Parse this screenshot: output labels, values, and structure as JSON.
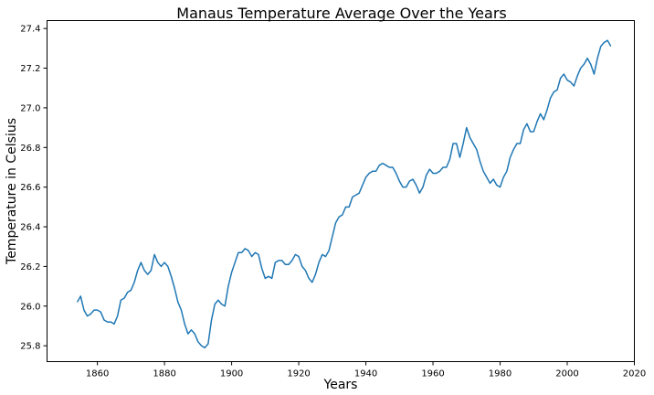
{
  "chart_data": {
    "type": "line",
    "title": "Manaus Temperature Average Over the Years",
    "xlabel": "Years",
    "ylabel": "Temperature in Celsius",
    "xlim": [
      1845,
      2020
    ],
    "ylim": [
      25.72,
      27.44
    ],
    "xticks": [
      1860,
      1880,
      1900,
      1920,
      1940,
      1960,
      1980,
      2000,
      2020
    ],
    "yticks": [
      25.8,
      26.0,
      26.2,
      26.4,
      26.6,
      26.8,
      27.0,
      27.2,
      27.4
    ],
    "xtick_labels": [
      "1860",
      "1880",
      "1900",
      "1920",
      "1940",
      "1960",
      "1980",
      "2000",
      "2020"
    ],
    "ytick_labels": [
      "25.8",
      "26.0",
      "26.2",
      "26.4",
      "26.6",
      "26.8",
      "27.0",
      "27.2",
      "27.4"
    ],
    "grid": false,
    "line_color": "#1f77b4",
    "series": [
      {
        "x": [
          1854,
          1855,
          1856,
          1857,
          1858,
          1859,
          1860,
          1861,
          1862,
          1863,
          1864,
          1865,
          1866,
          1867,
          1868,
          1869,
          1870,
          1871,
          1872,
          1873,
          1874,
          1875,
          1876,
          1877,
          1878,
          1879,
          1880,
          1881,
          1882,
          1883,
          1884,
          1885,
          1886,
          1887,
          1888,
          1889,
          1890,
          1891,
          1892,
          1893,
          1894,
          1895,
          1896,
          1897,
          1898,
          1899,
          1900,
          1901,
          1902,
          1903,
          1904,
          1905,
          1906,
          1907,
          1908,
          1909,
          1910,
          1911,
          1912,
          1913,
          1914,
          1915,
          1916,
          1917,
          1918,
          1919,
          1920,
          1921,
          1922,
          1923,
          1924,
          1925,
          1926,
          1927,
          1928,
          1929,
          1930,
          1931,
          1932,
          1933,
          1934,
          1935,
          1936,
          1937,
          1938,
          1939,
          1940,
          1941,
          1942,
          1943,
          1944,
          1945,
          1946,
          1947,
          1948,
          1949,
          1950,
          1951,
          1952,
          1953,
          1954,
          1955,
          1956,
          1957,
          1958,
          1959,
          1960,
          1961,
          1962,
          1963,
          1964,
          1965,
          1966,
          1967,
          1968,
          1969,
          1970,
          1971,
          1972,
          1973,
          1974,
          1975,
          1976,
          1977,
          1978,
          1979,
          1980,
          1981,
          1982,
          1983,
          1984,
          1985,
          1986,
          1987,
          1988,
          1989,
          1990,
          1991,
          1992,
          1993,
          1994,
          1995,
          1996,
          1997,
          1998,
          1999,
          2000,
          2001,
          2002,
          2003,
          2004,
          2005,
          2006,
          2007,
          2008,
          2009,
          2010,
          2011,
          2012,
          2013
        ],
        "values": [
          26.02,
          26.05,
          25.98,
          25.95,
          25.96,
          25.98,
          25.98,
          25.97,
          25.93,
          25.92,
          25.92,
          25.91,
          25.95,
          26.03,
          26.04,
          26.07,
          26.08,
          26.12,
          26.18,
          26.22,
          26.18,
          26.16,
          26.18,
          26.26,
          26.22,
          26.2,
          26.22,
          26.2,
          26.15,
          26.09,
          26.02,
          25.98,
          25.91,
          25.86,
          25.88,
          25.86,
          25.82,
          25.8,
          25.79,
          25.81,
          25.93,
          26.01,
          26.03,
          26.01,
          26.0,
          26.1,
          26.17,
          26.22,
          26.27,
          26.27,
          26.29,
          26.28,
          26.25,
          26.27,
          26.26,
          26.19,
          26.14,
          26.15,
          26.14,
          26.22,
          26.23,
          26.23,
          26.21,
          26.21,
          26.23,
          26.26,
          26.25,
          26.2,
          26.18,
          26.14,
          26.12,
          26.16,
          26.22,
          26.26,
          26.25,
          26.28,
          26.35,
          26.42,
          26.45,
          26.46,
          26.5,
          26.5,
          26.55,
          26.56,
          26.57,
          26.61,
          26.65,
          26.67,
          26.68,
          26.68,
          26.71,
          26.72,
          26.71,
          26.7,
          26.7,
          26.67,
          26.63,
          26.6,
          26.6,
          26.63,
          26.64,
          26.61,
          26.57,
          26.6,
          26.66,
          26.69,
          26.67,
          26.67,
          26.68,
          26.7,
          26.7,
          26.74,
          26.82,
          26.82,
          26.75,
          26.82,
          26.9,
          26.85,
          26.82,
          26.79,
          26.73,
          26.68,
          26.65,
          26.62,
          26.64,
          26.61,
          26.6,
          26.65,
          26.68,
          26.75,
          26.79,
          26.82,
          26.82,
          26.89,
          26.92,
          26.88,
          26.88,
          26.93,
          26.97,
          26.94,
          26.99,
          27.05,
          27.08,
          27.09,
          27.15,
          27.17,
          27.14,
          27.13,
          27.11,
          27.16,
          27.2,
          27.22,
          27.25,
          27.22,
          27.17,
          27.25,
          27.31,
          27.33,
          27.34,
          27.31
        ]
      }
    ]
  }
}
